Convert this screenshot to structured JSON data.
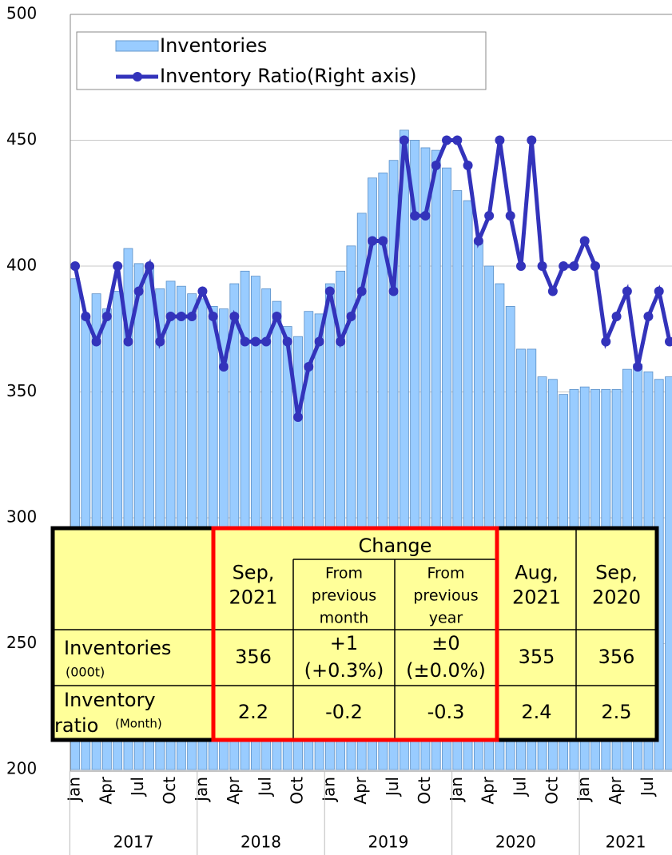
{
  "chart_data": {
    "type": "bar",
    "categories": [
      "Jan",
      null,
      null,
      "Apr",
      null,
      null,
      "Jul",
      null,
      null,
      "Oct",
      null,
      null,
      "Jan",
      null,
      null,
      "Apr",
      null,
      null,
      "Jul",
      null,
      null,
      "Oct",
      null,
      null,
      "Jan",
      null,
      null,
      "Apr",
      null,
      null,
      "Jul",
      null,
      null,
      "Oct",
      null,
      null,
      "Jan",
      null,
      null,
      "Apr",
      null,
      null,
      "Jul",
      null,
      null,
      "Oct",
      null,
      null,
      "Jan",
      null,
      null,
      "Apr",
      null,
      null,
      "Jul",
      null,
      null
    ],
    "years": [
      "2017",
      "2018",
      "2019",
      "2020",
      "2021"
    ],
    "series": [
      {
        "name": "Inventories",
        "color": "#99ccff",
        "values": [
          395,
          380,
          389,
          383,
          390,
          407,
          401,
          400,
          391,
          394,
          392,
          389,
          387,
          384,
          383,
          393,
          398,
          396,
          391,
          386,
          376,
          372,
          382,
          381,
          393,
          398,
          408,
          421,
          435,
          437,
          442,
          454,
          450,
          447,
          446,
          439,
          430,
          426,
          410,
          400,
          393,
          384,
          367,
          367,
          356,
          355,
          349,
          351,
          352,
          351,
          351,
          351,
          359,
          361,
          358,
          355,
          356
        ]
      },
      {
        "name": "Inventory Ratio(Right axis)",
        "color": "#3333bb",
        "type": "line",
        "axis": "y2",
        "values": [
          2.5,
          2.3,
          2.2,
          2.3,
          2.5,
          2.2,
          2.4,
          2.5,
          2.2,
          2.3,
          2.3,
          2.3,
          2.4,
          2.3,
          2.1,
          2.3,
          2.2,
          2.2,
          2.2,
          2.3,
          2.2,
          1.9,
          2.1,
          2.2,
          2.4,
          2.2,
          2.3,
          2.4,
          2.6,
          2.6,
          2.4,
          3.0,
          2.7,
          2.7,
          2.9,
          3.0,
          3.0,
          2.9,
          2.6,
          2.7,
          3.0,
          2.7,
          2.5,
          3.0,
          2.5,
          2.4,
          2.5,
          2.5,
          2.6,
          2.5,
          2.2,
          2.3,
          2.4,
          2.1,
          2.3,
          2.4,
          2.2
        ]
      }
    ],
    "ylim": [
      200,
      500
    ],
    "yticks": [
      200,
      250,
      300,
      350,
      400,
      450,
      500
    ],
    "y2lim": [
      0.5,
      3.5
    ],
    "grid": true,
    "legend": "top-left"
  },
  "table": {
    "change": "Change",
    "columns": [
      [
        "Sep,",
        "2021"
      ],
      [
        "From",
        "previous",
        "month"
      ],
      [
        "From",
        "previous",
        "year"
      ],
      [
        "Aug,",
        "2021"
      ],
      [
        "Sep,",
        "2020"
      ]
    ],
    "rows": [
      {
        "label": [
          "Inventories"
        ],
        "unit": "(000t)",
        "cells": [
          [
            "356"
          ],
          [
            "+1",
            "(+0.3%)"
          ],
          [
            "±0",
            "(±0.0%)"
          ],
          [
            "355"
          ],
          [
            "356"
          ]
        ]
      },
      {
        "label": [
          "Inventory",
          "ratio"
        ],
        "unit": "(Month)",
        "cells": [
          [
            "2.2"
          ],
          [
            "-0.2"
          ],
          [
            "-0.3"
          ],
          [
            "2.4"
          ],
          [
            "2.5"
          ]
        ]
      }
    ]
  }
}
